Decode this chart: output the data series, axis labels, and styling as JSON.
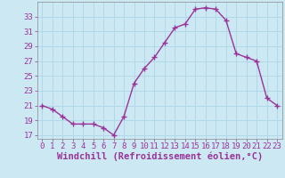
{
  "x": [
    0,
    1,
    2,
    3,
    4,
    5,
    6,
    7,
    8,
    9,
    10,
    11,
    12,
    13,
    14,
    15,
    16,
    17,
    18,
    19,
    20,
    21,
    22,
    23
  ],
  "y": [
    21,
    20.5,
    19.5,
    18.5,
    18.5,
    18.5,
    18,
    17,
    19.5,
    24,
    26,
    27.5,
    29.5,
    31.5,
    32,
    34,
    34.2,
    34,
    32.5,
    28,
    27.5,
    27,
    22,
    21
  ],
  "line_color": "#993399",
  "marker": "+",
  "xlabel": "Windchill (Refroidissement éolien,°C)",
  "ylim": [
    16.5,
    35
  ],
  "xlim": [
    -0.5,
    23.5
  ],
  "yticks": [
    17,
    19,
    21,
    23,
    25,
    27,
    29,
    31,
    33
  ],
  "xticks": [
    0,
    1,
    2,
    3,
    4,
    5,
    6,
    7,
    8,
    9,
    10,
    11,
    12,
    13,
    14,
    15,
    16,
    17,
    18,
    19,
    20,
    21,
    22,
    23
  ],
  "bg_color": "#cce9f3",
  "grid_color": "#b0d8e8",
  "tick_color": "#993399",
  "tick_label_fontsize": 6.5,
  "xlabel_fontsize": 7.5,
  "line_width": 1.0,
  "marker_size": 4
}
